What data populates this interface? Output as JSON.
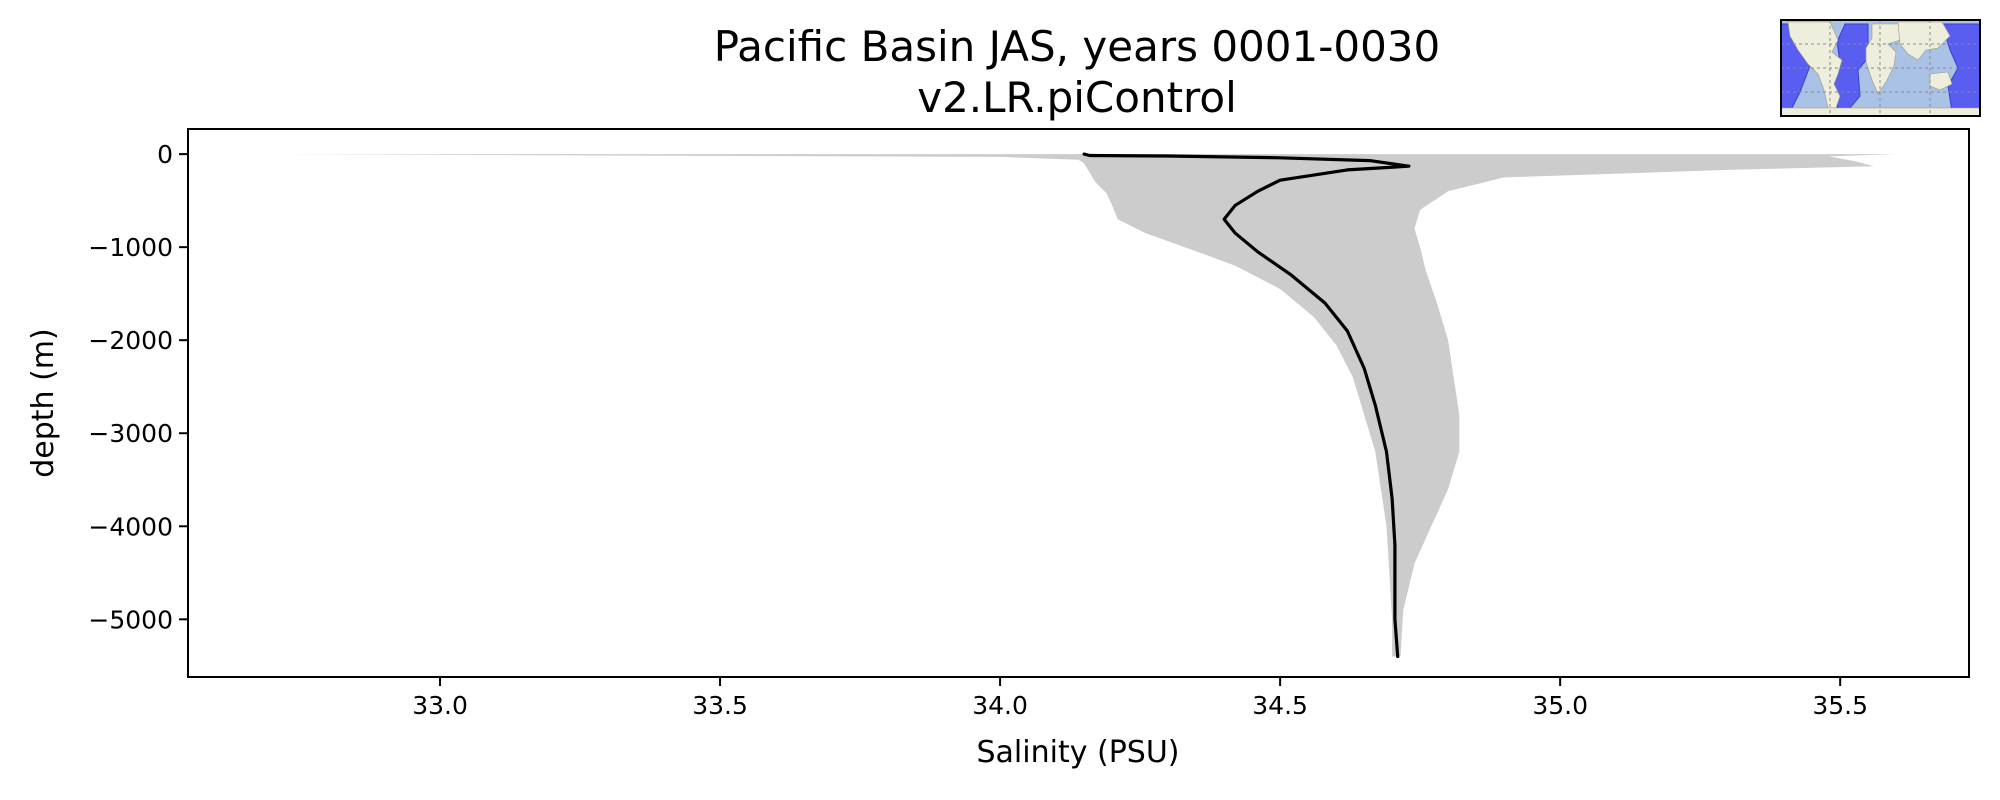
{
  "chart_data": {
    "type": "line",
    "title_line1": "Pacific Basin JAS, years 0001-0030",
    "title_line2": "v2.LR.piControl",
    "xlabel": "Salinity (PSU)",
    "ylabel": "depth (m)",
    "xlim": [
      32.55,
      35.73
    ],
    "ylim": [
      -5620,
      270
    ],
    "xticks": [
      {
        "value": 33.0,
        "label": "33.0"
      },
      {
        "value": 33.5,
        "label": "33.5"
      },
      {
        "value": 34.0,
        "label": "34.0"
      },
      {
        "value": 34.5,
        "label": "34.5"
      },
      {
        "value": 35.0,
        "label": "35.0"
      },
      {
        "value": 35.5,
        "label": "35.5"
      }
    ],
    "yticks": [
      {
        "value": 0,
        "label": "0"
      },
      {
        "value": -1000,
        "label": "−1000"
      },
      {
        "value": -2000,
        "label": "−2000"
      },
      {
        "value": -3000,
        "label": "−3000"
      },
      {
        "value": -4000,
        "label": "−4000"
      },
      {
        "value": -5000,
        "label": "−5000"
      }
    ],
    "grid": false,
    "legend": "none",
    "series": [
      {
        "color": "#000000",
        "points": [
          [
            34.15,
            0
          ],
          [
            34.16,
            -15
          ],
          [
            34.3,
            -20
          ],
          [
            34.5,
            -40
          ],
          [
            34.66,
            -70
          ],
          [
            34.73,
            -130
          ],
          [
            34.62,
            -170
          ],
          [
            34.5,
            -280
          ],
          [
            34.46,
            -400
          ],
          [
            34.42,
            -550
          ],
          [
            34.4,
            -700
          ],
          [
            34.42,
            -850
          ],
          [
            34.46,
            -1050
          ],
          [
            34.52,
            -1300
          ],
          [
            34.58,
            -1600
          ],
          [
            34.62,
            -1900
          ],
          [
            34.65,
            -2300
          ],
          [
            34.67,
            -2700
          ],
          [
            34.69,
            -3200
          ],
          [
            34.7,
            -3700
          ],
          [
            34.705,
            -4200
          ],
          [
            34.705,
            -4700
          ],
          [
            34.705,
            -5000
          ],
          [
            34.71,
            -5400
          ]
        ]
      }
    ],
    "spread": {
      "color": "#cccccc",
      "lower": [
        [
          32.72,
          0
        ],
        [
          33.3,
          -15
        ],
        [
          34.0,
          -30
        ],
        [
          34.14,
          -60
        ],
        [
          34.15,
          -100
        ],
        [
          34.16,
          -200
        ],
        [
          34.17,
          -300
        ],
        [
          34.19,
          -420
        ],
        [
          34.2,
          -550
        ],
        [
          34.21,
          -700
        ],
        [
          34.26,
          -850
        ],
        [
          34.33,
          -1000
        ],
        [
          34.42,
          -1200
        ],
        [
          34.5,
          -1450
        ],
        [
          34.56,
          -1750
        ],
        [
          34.6,
          -2050
        ],
        [
          34.63,
          -2400
        ],
        [
          34.65,
          -2800
        ],
        [
          34.67,
          -3200
        ],
        [
          34.68,
          -3600
        ],
        [
          34.69,
          -4000
        ],
        [
          34.695,
          -4500
        ],
        [
          34.7,
          -5000
        ],
        [
          34.7,
          -5400
        ]
      ],
      "upper": [
        [
          35.6,
          0
        ],
        [
          35.48,
          -25
        ],
        [
          35.53,
          -80
        ],
        [
          35.56,
          -130
        ],
        [
          35.3,
          -170
        ],
        [
          34.9,
          -250
        ],
        [
          34.8,
          -400
        ],
        [
          34.75,
          -600
        ],
        [
          34.74,
          -800
        ],
        [
          34.75,
          -1000
        ],
        [
          34.76,
          -1250
        ],
        [
          34.78,
          -1600
        ],
        [
          34.8,
          -2000
        ],
        [
          34.81,
          -2400
        ],
        [
          34.82,
          -2800
        ],
        [
          34.82,
          -3200
        ],
        [
          34.8,
          -3600
        ],
        [
          34.77,
          -4000
        ],
        [
          34.74,
          -4400
        ],
        [
          34.72,
          -4900
        ],
        [
          34.715,
          -5400
        ]
      ]
    }
  },
  "inset_map": {
    "land_color": "#eeeedd",
    "ocean_color": "#a9c2e6",
    "region_color": "#5a5ef0"
  }
}
